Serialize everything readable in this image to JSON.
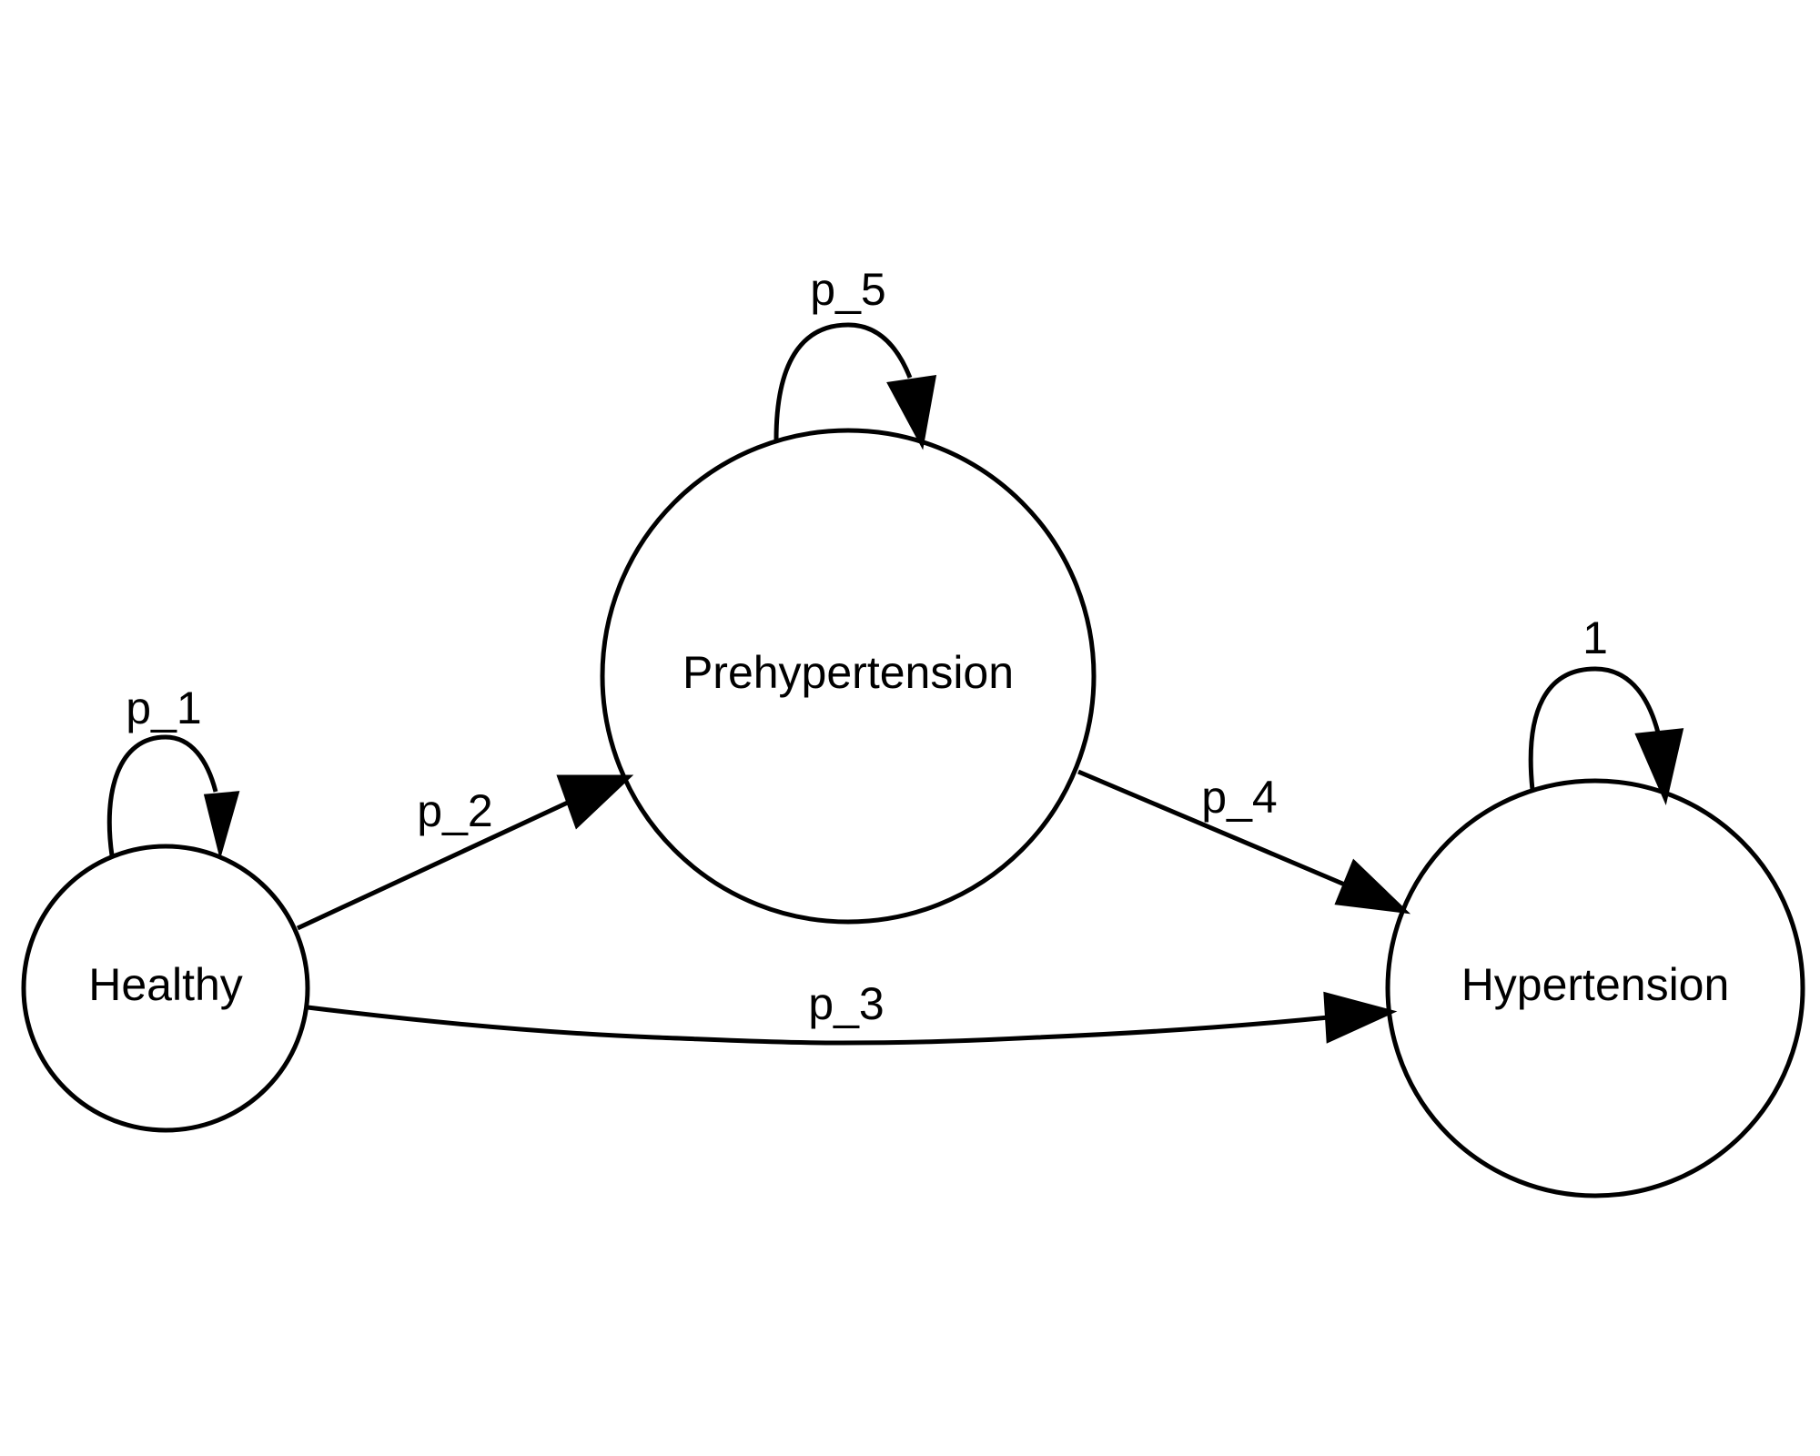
{
  "diagram": {
    "type": "state-transition",
    "nodes": {
      "healthy": {
        "label": "Healthy"
      },
      "prehypertension": {
        "label": "Prehypertension"
      },
      "hypertension": {
        "label": "Hypertension"
      }
    },
    "edges": {
      "healthy_healthy": {
        "from": "Healthy",
        "to": "Healthy",
        "label": "p_1"
      },
      "healthy_prehypertension": {
        "from": "Healthy",
        "to": "Prehypertension",
        "label": "p_2"
      },
      "healthy_hypertension": {
        "from": "Healthy",
        "to": "Hypertension",
        "label": "p_3"
      },
      "prehypertension_hypertension": {
        "from": "Prehypertension",
        "to": "Hypertension",
        "label": "p_4"
      },
      "prehypertension_prehypertension": {
        "from": "Prehypertension",
        "to": "Prehypertension",
        "label": "p_5"
      },
      "hypertension_hypertension": {
        "from": "Hypertension",
        "to": "Hypertension",
        "label": "1"
      }
    }
  }
}
